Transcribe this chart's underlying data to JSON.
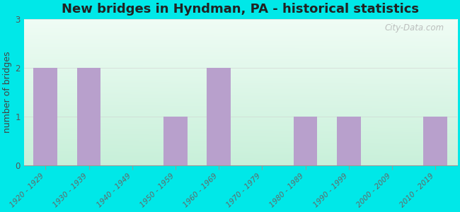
{
  "title": "New bridges in Hyndman, PA - historical statistics",
  "ylabel": "number of bridges",
  "categories": [
    "1920 - 1929",
    "1930 - 1939",
    "1940 - 1949",
    "1950 - 1959",
    "1960 - 1969",
    "1970 - 1979",
    "1980 - 1989",
    "1990 - 1999",
    "2000 - 2009",
    "2010 - 2019"
  ],
  "values": [
    2,
    2,
    0,
    1,
    2,
    0,
    1,
    1,
    0,
    1
  ],
  "bar_color": "#b8a0cc",
  "background_outer": "#00e8e8",
  "ylim": [
    0,
    3
  ],
  "yticks": [
    0,
    1,
    2,
    3
  ],
  "title_fontsize": 13,
  "label_fontsize": 9,
  "tick_fontsize": 7.5,
  "watermark": "City-Data.com",
  "bg_color_topleft": "#e0f5e8",
  "bg_color_topright": "#f0faf8",
  "bg_color_bottomleft": "#c8eed8",
  "bg_color_bottomright": "#e8f8f0"
}
